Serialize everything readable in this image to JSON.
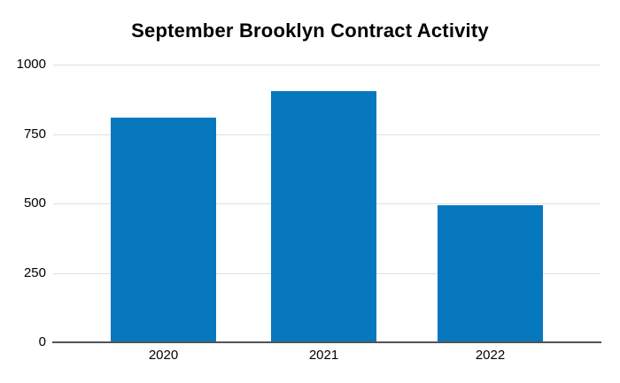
{
  "chart_data": {
    "type": "bar",
    "title": "September Brooklyn Contract Activity",
    "categories": [
      "2020",
      "2021",
      "2022"
    ],
    "values": [
      810,
      905,
      495
    ],
    "xlabel": "",
    "ylabel": "",
    "ylim": [
      0,
      1000
    ],
    "yticks": [
      0,
      250,
      500,
      750,
      1000
    ],
    "grid": true,
    "legend_position": "none",
    "colors": {
      "bar": "#0878be",
      "gridline": "#e0e0e0",
      "axis_line": "#545454",
      "text": "#000000",
      "background": "#ffffff"
    }
  }
}
